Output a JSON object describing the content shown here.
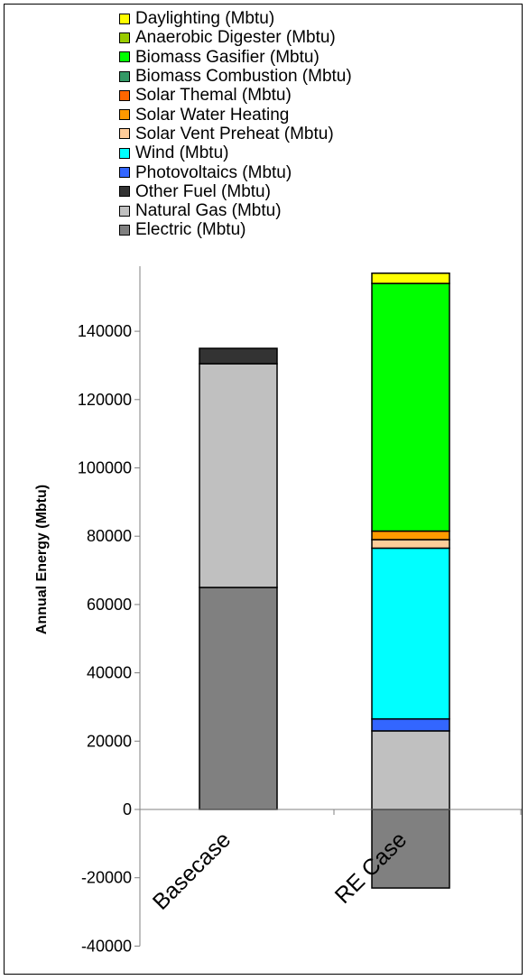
{
  "chart_data": {
    "type": "bar",
    "stacked": true,
    "categories": [
      "Basecase",
      "RE Case"
    ],
    "ylabel": "Annual Energy (Mbtu)",
    "xlabel": "",
    "ylim": [
      -40000,
      160000
    ],
    "yticks": [
      -40000,
      -20000,
      0,
      20000,
      40000,
      60000,
      80000,
      100000,
      120000,
      140000
    ],
    "legend_position": "top",
    "grid": false,
    "series": [
      {
        "name": "Electric (Mbtu)",
        "color": "#808080",
        "values": [
          65000,
          -23000
        ]
      },
      {
        "name": "Natural Gas (Mbtu)",
        "color": "#c0c0c0",
        "values": [
          65500,
          23000
        ]
      },
      {
        "name": "Other Fuel (Mbtu)",
        "color": "#333333",
        "values": [
          4500,
          0
        ]
      },
      {
        "name": "Photovoltaics (Mbtu)",
        "color": "#3366ff",
        "values": [
          0,
          3500
        ]
      },
      {
        "name": "Wind (Mbtu)",
        "color": "#00ffff",
        "values": [
          0,
          50000
        ]
      },
      {
        "name": "Solar Vent Preheat (Mbtu)",
        "color": "#ffcc99",
        "values": [
          0,
          2500
        ]
      },
      {
        "name": "Solar Water Heating",
        "color": "#ff9900",
        "values": [
          0,
          2500
        ]
      },
      {
        "name": "Solar Themal (Mbtu)",
        "color": "#ff6600",
        "values": [
          0,
          0
        ]
      },
      {
        "name": "Biomass Combustion (Mbtu)",
        "color": "#339966",
        "values": [
          0,
          0
        ]
      },
      {
        "name": "Biomass Gasifier (Mbtu)",
        "color": "#00ff00",
        "values": [
          0,
          72500
        ]
      },
      {
        "name": "Anaerobic Digester (Mbtu)",
        "color": "#99cc00",
        "values": [
          0,
          0
        ]
      },
      {
        "name": "Daylighting (Mbtu)",
        "color": "#ffff00",
        "values": [
          0,
          3000
        ]
      }
    ],
    "legend_order": [
      "Daylighting (Mbtu)",
      "Anaerobic Digester (Mbtu)",
      "Biomass Gasifier (Mbtu)",
      "Biomass Combustion (Mbtu)",
      "Solar Themal (Mbtu)",
      "Solar Water Heating",
      "Solar Vent Preheat (Mbtu)",
      "Wind (Mbtu)",
      "Photovoltaics (Mbtu)",
      "Other Fuel (Mbtu)",
      "Natural Gas (Mbtu)",
      "Electric (Mbtu)"
    ]
  }
}
